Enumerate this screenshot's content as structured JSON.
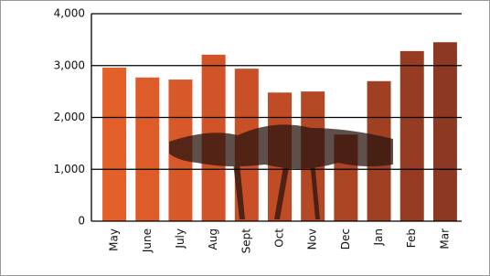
{
  "chart_data": {
    "type": "bar",
    "categories": [
      "May",
      "June",
      "July",
      "Aug",
      "Sept",
      "Oct",
      "Nov",
      "Dec",
      "Jan",
      "Feb",
      "Mar"
    ],
    "values": [
      2960,
      2770,
      2730,
      3210,
      2940,
      2480,
      2500,
      1670,
      2700,
      3280,
      3450
    ],
    "colors": [
      "#e4602a",
      "#de5c29",
      "#d75828",
      "#d05427",
      "#c95026",
      "#c04c25",
      "#b54824",
      "#aa4423",
      "#a04023",
      "#963c22",
      "#8c3822"
    ],
    "ylim": [
      0,
      4000
    ],
    "yticks": [
      0,
      {
        "value": 1000,
        "label": "1,000"
      },
      {
        "value": 2000,
        "label": "2,000"
      },
      {
        "value": 3000,
        "label": "3,000"
      },
      {
        "value": 4000,
        "label": "4,000"
      }
    ],
    "grid": true
  }
}
